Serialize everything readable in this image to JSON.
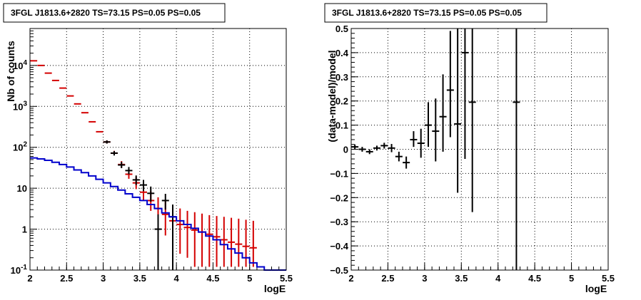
{
  "chart_data": [
    {
      "type": "scatter",
      "title": "3FGL J1813.6+2820 TS=73.15 PS=0.05 PS=0.05",
      "xlabel": "logE",
      "ylabel": "Nb of counts",
      "xlim": [
        2,
        5.5
      ],
      "ylim": [
        0.1,
        80000
      ],
      "yscale": "log",
      "grid": true,
      "x_tick_labels": [
        "2",
        "2.5",
        "3",
        "3.5",
        "4",
        "4.5",
        "5",
        "5.5"
      ],
      "y_tick_labels": [
        "10^-1",
        "1",
        "10",
        "10^2",
        "10^3",
        "10^4"
      ],
      "series": [
        {
          "color": "#d40000",
          "kind": "error-bars",
          "x": [
            2.05,
            2.15,
            2.25,
            2.35,
            2.45,
            2.55,
            2.65,
            2.75,
            2.85,
            2.95,
            3.05,
            3.15,
            3.25,
            3.35,
            3.45,
            3.55,
            3.65,
            3.75,
            3.85,
            3.95,
            4.05,
            4.15,
            4.25,
            4.35,
            4.45,
            4.55,
            4.65,
            4.75,
            4.85,
            4.95,
            5.05
          ],
          "y": [
            13000,
            10000,
            6500,
            4300,
            2800,
            1800,
            1150,
            700,
            420,
            240,
            135,
            72,
            38,
            22,
            13.5,
            8,
            5,
            3.2,
            2.3,
            1.6,
            1.3,
            1.1,
            0.95,
            0.85,
            0.75,
            0.65,
            0.55,
            0.48,
            0.43,
            0.38,
            0.35
          ],
          "y_low": [
            13000,
            10000,
            6500,
            4300,
            2800,
            1800,
            1150,
            700,
            420,
            240,
            125,
            64,
            32,
            17,
            9.5,
            5,
            2.8,
            1.4,
            0.7,
            0.35,
            0.25,
            0.2,
            0.12,
            0.12,
            0.12,
            0.12,
            0.12,
            0.12,
            0.12,
            0.12,
            0.12
          ],
          "y_high": [
            13000,
            10000,
            6500,
            4300,
            2800,
            1800,
            1150,
            700,
            420,
            240,
            148,
            82,
            46,
            28,
            19,
            12,
            8.5,
            6,
            4.8,
            3.8,
            3.2,
            2.8,
            2.6,
            2.4,
            2.2,
            2.1,
            2.0,
            1.9,
            1.8,
            1.7,
            1.6
          ]
        },
        {
          "color": "#000000",
          "kind": "error-bars",
          "x": [
            3.05,
            3.15,
            3.25,
            3.35,
            3.45,
            3.55,
            3.65,
            3.75,
            3.85,
            3.95
          ],
          "y": [
            135,
            72,
            37,
            27,
            16,
            12,
            7.5,
            1.0,
            5.0,
            2.0
          ],
          "y_low": [
            123,
            63,
            31,
            22,
            12,
            8.5,
            4.7,
            0.1,
            3.0,
            0.1
          ],
          "y_high": [
            148,
            81,
            44,
            33,
            20.5,
            16,
            11,
            2.3,
            7.3,
            4.0
          ]
        },
        {
          "color": "#0000cc",
          "kind": "step-line",
          "x_edges": [
            2.0,
            2.1,
            2.2,
            2.3,
            2.4,
            2.5,
            2.6,
            2.7,
            2.8,
            2.9,
            3.0,
            3.1,
            3.2,
            3.3,
            3.4,
            3.5,
            3.6,
            3.7,
            3.8,
            3.9,
            4.0,
            4.1,
            4.2,
            4.3,
            4.4,
            4.5,
            4.6,
            4.7,
            4.8,
            4.9,
            5.0,
            5.1,
            5.2,
            5.3,
            5.4,
            5.5
          ],
          "y": [
            55,
            52,
            48,
            43,
            38,
            33,
            28,
            24,
            20,
            16.5,
            13.5,
            11,
            9,
            7.3,
            6,
            5,
            4,
            3.2,
            2.5,
            2.0,
            1.6,
            1.3,
            1.05,
            0.85,
            0.68,
            0.55,
            0.42,
            0.33,
            0.26,
            0.2,
            0.15,
            0.12,
            0.1,
            0.1,
            0.1
          ]
        }
      ]
    },
    {
      "type": "scatter",
      "title": "3FGL J1813.6+2820 TS=73.15 PS=0.05 PS=0.05",
      "xlabel": "logE",
      "ylabel": "(data-model)/model",
      "xlim": [
        2,
        5.5
      ],
      "ylim": [
        -0.5,
        0.5
      ],
      "grid": true,
      "x_tick_labels": [
        "2",
        "2.5",
        "3",
        "3.5",
        "4",
        "4.5",
        "5",
        "5.5"
      ],
      "y_tick_labels": [
        "−0.5",
        "−0.4",
        "−0.3",
        "−0.2",
        "−0.1",
        "0",
        "0.1",
        "0.2",
        "0.3",
        "0.4",
        "0.5"
      ],
      "series": [
        {
          "color": "#000000",
          "kind": "error-bars",
          "x": [
            2.05,
            2.15,
            2.25,
            2.35,
            2.45,
            2.55,
            2.65,
            2.75,
            2.85,
            2.95,
            3.05,
            3.15,
            3.25,
            3.35,
            3.45,
            3.55,
            3.65,
            4.25
          ],
          "y": [
            0.01,
            0.0,
            -0.01,
            0.005,
            0.015,
            0.005,
            -0.03,
            -0.055,
            0.04,
            0.025,
            0.1,
            0.075,
            0.135,
            0.245,
            0.105,
            0.4,
            0.195,
            0.195
          ],
          "y_low": [
            0.0,
            -0.01,
            -0.02,
            -0.005,
            0.003,
            -0.012,
            -0.05,
            -0.08,
            0.01,
            -0.035,
            0.01,
            -0.05,
            -0.01,
            0.05,
            -0.18,
            -0.04,
            -0.26,
            -0.5
          ],
          "y_high": [
            0.02,
            0.01,
            0.0,
            0.015,
            0.027,
            0.022,
            -0.01,
            -0.03,
            0.075,
            0.085,
            0.195,
            0.21,
            0.31,
            0.49,
            0.5,
            0.5,
            0.5,
            0.5
          ]
        }
      ]
    }
  ]
}
